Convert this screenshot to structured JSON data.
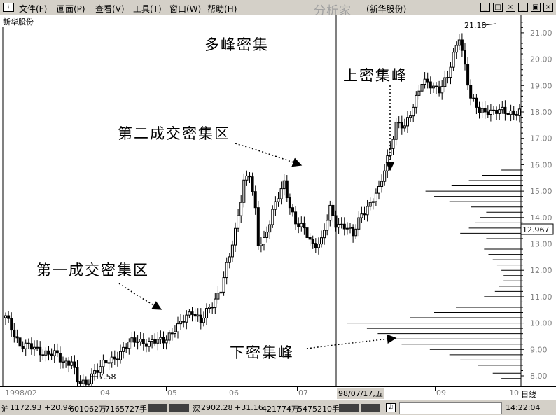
{
  "menubar": {
    "app_icon": "ᚼ",
    "items": [
      "文件(F)",
      "画面(P)",
      "查看(V)",
      "工具(T)",
      "窗口(W)",
      "帮助(H)"
    ],
    "brand": "分析家",
    "window_title": "(新华股份)",
    "buttons": [
      "_",
      "□",
      "×",
      "_",
      "▣",
      "×"
    ]
  },
  "stock_label": "新华股份",
  "annotations": {
    "multi_peak": "多峰密集",
    "upper_peak": "上密集峰",
    "zone_two": "第二成交密集区",
    "zone_one": "第一成交密集区",
    "lower_peak": "下密集峰"
  },
  "chart_data": {
    "type": "candlestick",
    "title": "",
    "ylim": [
      7.3,
      21.4
    ],
    "y_ticks": [
      "8.00",
      "9.00",
      "10.00",
      "11.00",
      "12.00",
      "13.00",
      "14.00",
      "15.00",
      "16.00",
      "17.00",
      "18.00",
      "19.00",
      "20.00",
      "21.00"
    ],
    "x_ticks": [
      "1998/02",
      "04",
      "05",
      "06",
      "07",
      "08",
      "09",
      "10"
    ],
    "axis_unit": "日线",
    "high_label": "21.18",
    "low_label": "7.58",
    "current_price": "12.967",
    "cursor_date": "98/07/17,五",
    "price_path": [
      [
        0,
        10.2
      ],
      [
        5,
        9.2
      ],
      [
        12,
        8.95
      ],
      [
        18,
        8.75
      ],
      [
        20,
        8.5
      ],
      [
        23,
        8.6
      ],
      [
        25,
        7.75
      ],
      [
        28,
        7.65
      ],
      [
        30,
        8.1
      ],
      [
        34,
        8.4
      ],
      [
        38,
        8.7
      ],
      [
        43,
        9.2
      ],
      [
        46,
        9.4
      ],
      [
        50,
        9.2
      ],
      [
        55,
        9.4
      ],
      [
        60,
        9.8
      ],
      [
        63,
        10.3
      ],
      [
        65,
        10.5
      ],
      [
        68,
        10.0
      ],
      [
        70,
        10.4
      ],
      [
        75,
        11.3
      ],
      [
        78,
        12.5
      ],
      [
        80,
        13.5
      ],
      [
        83,
        15.4
      ],
      [
        85,
        15.6
      ],
      [
        87,
        14.2
      ],
      [
        88,
        13.0
      ],
      [
        90,
        13.2
      ],
      [
        93,
        14.2
      ],
      [
        97,
        15.3
      ],
      [
        99,
        14.5
      ],
      [
        101,
        13.8
      ],
      [
        104,
        13.5
      ],
      [
        107,
        13.0
      ],
      [
        110,
        13.1
      ],
      [
        113,
        14.3
      ],
      [
        115,
        13.8
      ],
      [
        118,
        13.7
      ],
      [
        121,
        13.3
      ],
      [
        124,
        14.2
      ],
      [
        127,
        14.5
      ],
      [
        130,
        15.0
      ],
      [
        133,
        16.3
      ],
      [
        136,
        17.5
      ],
      [
        139,
        17.4
      ],
      [
        142,
        18.3
      ],
      [
        145,
        19.1
      ],
      [
        148,
        19.0
      ],
      [
        151,
        18.9
      ],
      [
        154,
        19.3
      ],
      [
        157,
        20.5
      ],
      [
        158,
        20.9
      ],
      [
        160,
        19.8
      ],
      [
        162,
        18.5
      ],
      [
        165,
        18.0
      ],
      [
        168,
        18.1
      ],
      [
        170,
        18.0
      ]
    ],
    "volume_profile": [
      [
        7.6,
        1.0
      ],
      [
        7.9,
        0.9
      ],
      [
        8.1,
        1.3
      ],
      [
        8.4,
        2.0
      ],
      [
        8.6,
        2.8
      ],
      [
        8.8,
        3.3
      ],
      [
        9.0,
        4.2
      ],
      [
        9.2,
        5.5
      ],
      [
        9.4,
        6.2
      ],
      [
        9.6,
        6.6
      ],
      [
        9.8,
        7.1
      ],
      [
        10.0,
        8.0
      ],
      [
        10.2,
        5.1
      ],
      [
        10.4,
        4.0
      ],
      [
        10.6,
        3.0
      ],
      [
        10.8,
        2.1
      ],
      [
        11.0,
        1.7
      ],
      [
        11.2,
        1.2
      ],
      [
        11.4,
        1.0
      ],
      [
        11.6,
        0.8
      ],
      [
        11.8,
        0.8
      ],
      [
        12.0,
        0.9
      ],
      [
        12.2,
        1.1
      ],
      [
        12.4,
        1.3
      ],
      [
        12.6,
        1.5
      ],
      [
        12.8,
        1.7
      ],
      [
        13.0,
        2.0
      ],
      [
        13.2,
        1.6
      ],
      [
        13.4,
        2.8
      ],
      [
        13.6,
        2.4
      ],
      [
        13.8,
        2.1
      ],
      [
        14.0,
        1.9
      ],
      [
        14.2,
        1.6
      ],
      [
        14.4,
        2.3
      ],
      [
        14.6,
        3.3
      ],
      [
        14.8,
        4.0
      ],
      [
        15.0,
        4.4
      ],
      [
        15.2,
        3.2
      ],
      [
        15.4,
        2.4
      ],
      [
        15.6,
        1.8
      ],
      [
        15.8,
        0.9
      ]
    ]
  },
  "timeaxis": {
    "first_label": "1998/02",
    "labels": [
      "04",
      "05",
      "06",
      "07",
      "09",
      "10"
    ],
    "cursor_date": "98/07/17,五",
    "unit": "日线"
  },
  "statusbar": {
    "sh_label": "沪",
    "sh_index": "1172.93",
    "sh_change": "+20.94",
    "sh_amount": "601062万",
    "sh_volume": "7165727手",
    "sz_label": "深",
    "sz_index": "2902.28",
    "sz_change": "+31.16",
    "sz_amount": "421774万",
    "sz_volume": "5475210手",
    "clock": "14:22:04"
  }
}
